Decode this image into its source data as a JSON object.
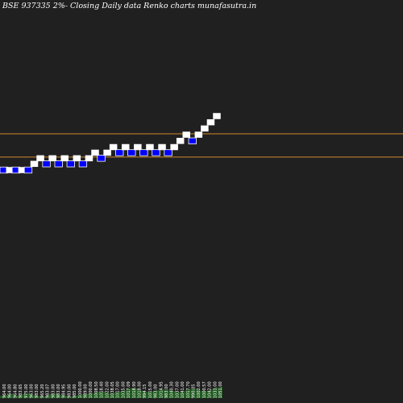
{
  "chart_data": {
    "type": "renko",
    "title": "BSE 937335 2%-  Closing Daily data  Renko  charts munafasutra.in",
    "colors": {
      "up_brick": "#ffffff",
      "down_brick": "#0000ff",
      "reference_line": "#d08a2c",
      "volume": "#1f5a1f",
      "background": "#202020"
    },
    "reference_lines": [
      1022.5,
      985.0
    ],
    "bricks": [
      {
        "dir": "down",
        "value": 964
      },
      {
        "dir": "up",
        "value": 964
      },
      {
        "dir": "down",
        "value": 964
      },
      {
        "dir": "up",
        "value": 964
      },
      {
        "dir": "down",
        "value": 964
      },
      {
        "dir": "up",
        "value": 974
      },
      {
        "dir": "up",
        "value": 983
      },
      {
        "dir": "down",
        "value": 974
      },
      {
        "dir": "up",
        "value": 983
      },
      {
        "dir": "down",
        "value": 974
      },
      {
        "dir": "up",
        "value": 983
      },
      {
        "dir": "down",
        "value": 974
      },
      {
        "dir": "up",
        "value": 983
      },
      {
        "dir": "down",
        "value": 974
      },
      {
        "dir": "up",
        "value": 983
      },
      {
        "dir": "up",
        "value": 992
      },
      {
        "dir": "down",
        "value": 983
      },
      {
        "dir": "up",
        "value": 992
      },
      {
        "dir": "up",
        "value": 1001
      },
      {
        "dir": "down",
        "value": 992
      },
      {
        "dir": "up",
        "value": 1001
      },
      {
        "dir": "down",
        "value": 992
      },
      {
        "dir": "up",
        "value": 1001
      },
      {
        "dir": "down",
        "value": 992
      },
      {
        "dir": "up",
        "value": 1001
      },
      {
        "dir": "down",
        "value": 992
      },
      {
        "dir": "up",
        "value": 1001
      },
      {
        "dir": "down",
        "value": 992
      },
      {
        "dir": "up",
        "value": 1001
      },
      {
        "dir": "up",
        "value": 1011
      },
      {
        "dir": "up",
        "value": 1021
      },
      {
        "dir": "down",
        "value": 1011
      },
      {
        "dir": "up",
        "value": 1021
      },
      {
        "dir": "up",
        "value": 1031
      },
      {
        "dir": "up",
        "value": 1041
      },
      {
        "dir": "up",
        "value": 1051
      }
    ],
    "x_labels": [
      "964.00",
      "964.00",
      "964.80",
      "983.65",
      "975.00",
      "963.00",
      "983.00",
      "965.20",
      "983.07",
      "983.00",
      "983.00",
      "984.95",
      "983.00",
      "985.00",
      "1000.00",
      "989.00",
      "1000.00",
      "1008.50",
      "1018.40",
      "1022.00",
      "1038.05",
      "1017.00",
      "1035.00",
      "1017.09",
      "1018.90",
      "1018.00",
      "994.15",
      "1015.00",
      "983.00",
      "1014.95",
      "983.00",
      "1040.30",
      "1037.00",
      "1041.00",
      "1017.70",
      "990.05",
      "1002.00",
      "1000.57",
      "1042.00",
      "1033.00",
      "1051.00"
    ],
    "volume": [
      3,
      4,
      6,
      3,
      5,
      7,
      4,
      3,
      2,
      5,
      6,
      4,
      3,
      2,
      4,
      5,
      6,
      7,
      9,
      8,
      6,
      8,
      9,
      12,
      14,
      11,
      9,
      8,
      10,
      12,
      11,
      10,
      8,
      9,
      12,
      13,
      10,
      9,
      11,
      14,
      15
    ]
  }
}
